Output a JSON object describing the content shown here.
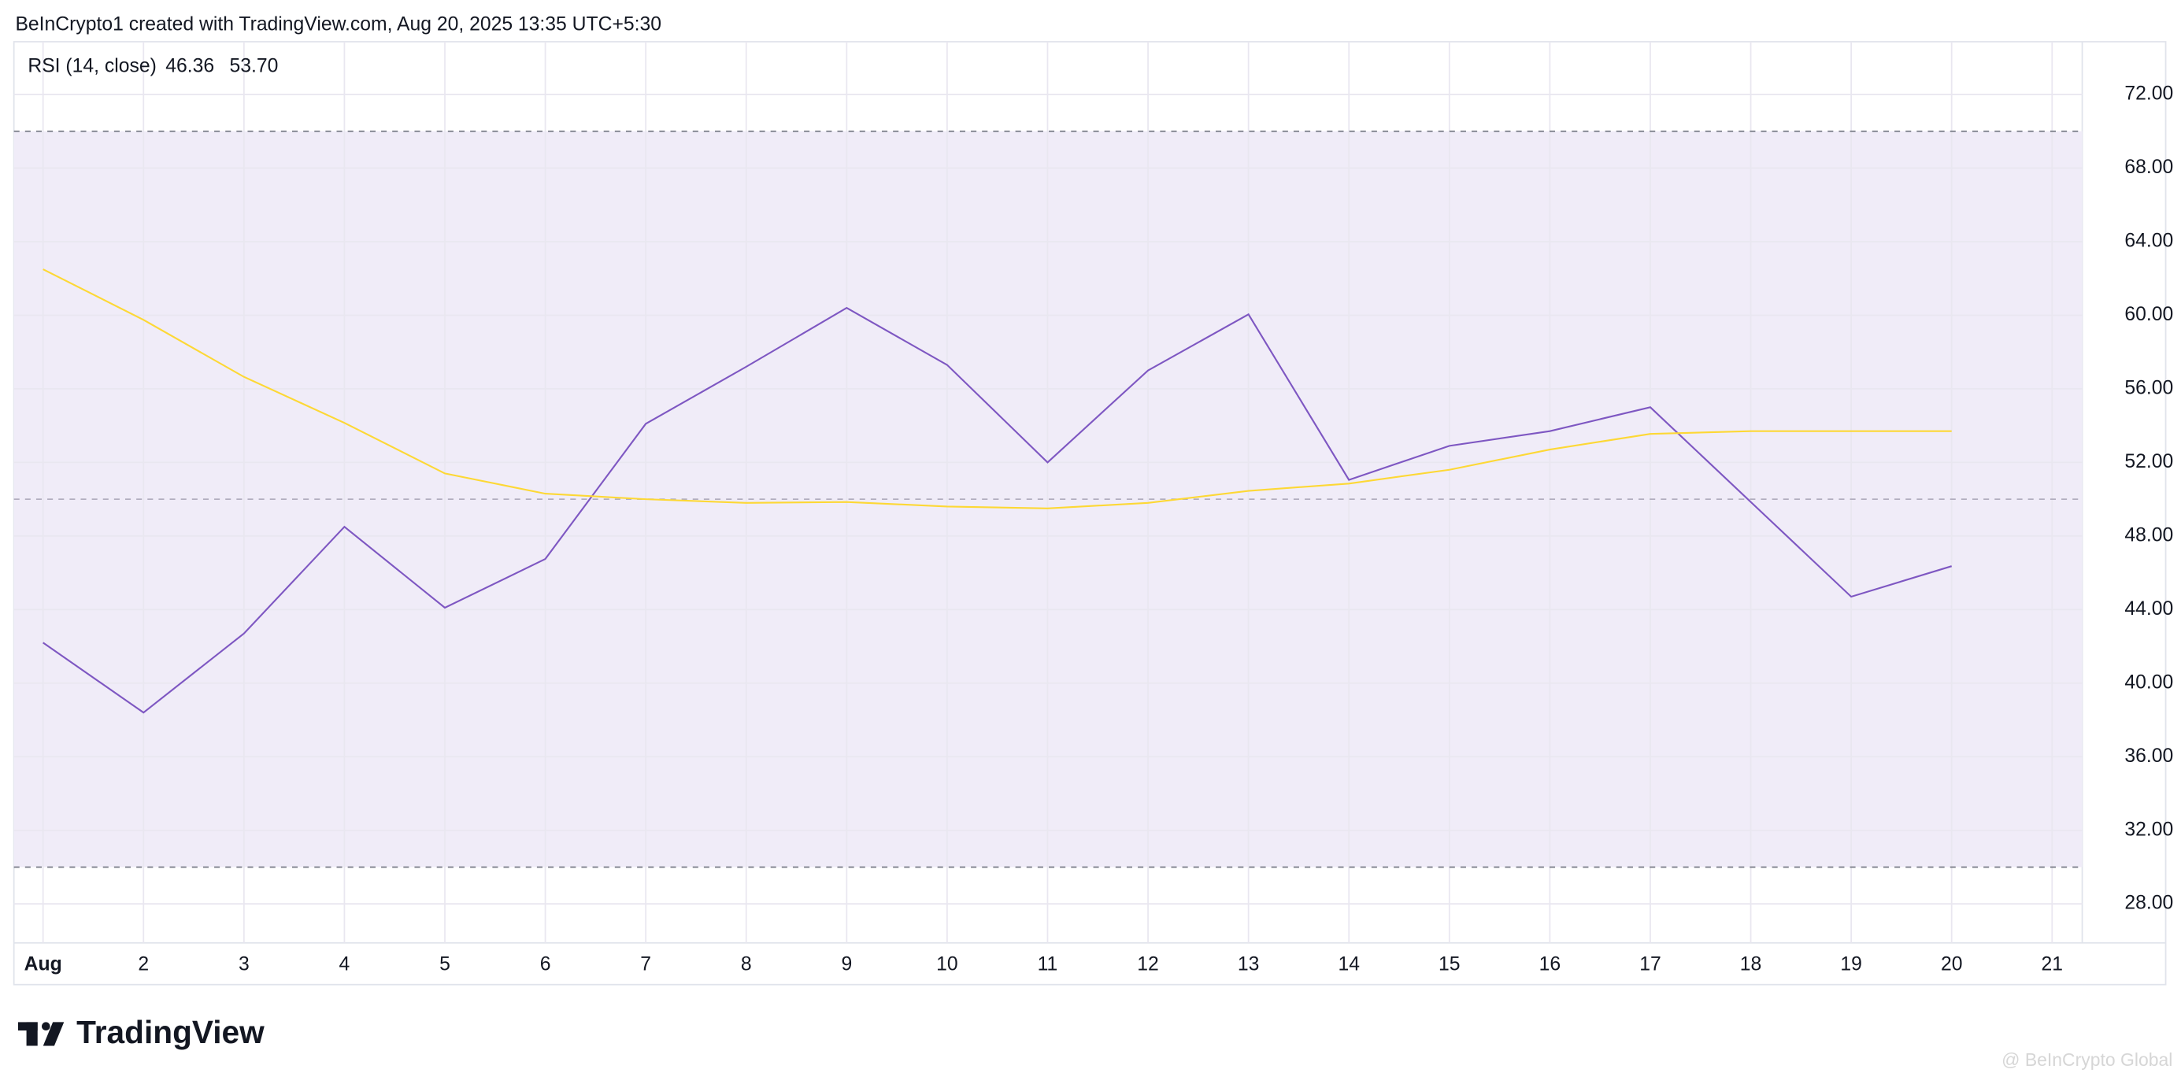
{
  "header": {
    "title": "BeInCrypto1 created with TradingView.com, Aug 20, 2025 13:35 UTC+5:30"
  },
  "chart_data": {
    "type": "line",
    "title": "RSI (14, close)",
    "legend_values": [
      "46.36",
      "53.70"
    ],
    "x": [
      1,
      2,
      3,
      4,
      5,
      6,
      7,
      8,
      9,
      10,
      11,
      12,
      13,
      14,
      15,
      16,
      17,
      18,
      19,
      20
    ],
    "series": [
      {
        "color": "#7e57c2",
        "values": [
          42.2,
          38.4,
          42.7,
          48.5,
          44.1,
          46.75,
          54.1,
          57.2,
          60.4,
          57.3,
          52.0,
          57.0,
          60.05,
          51.05,
          52.9,
          53.7,
          55.0,
          49.85,
          44.7,
          46.36
        ]
      },
      {
        "color": "#fdd835",
        "values": [
          62.5,
          59.75,
          56.65,
          54.15,
          51.4,
          50.3,
          50.0,
          49.8,
          49.85,
          49.6,
          49.5,
          49.8,
          50.45,
          50.85,
          51.6,
          52.7,
          53.55,
          53.7,
          53.7,
          53.7
        ]
      }
    ],
    "xlim": [
      0.71,
      21.3
    ],
    "xticks": [
      {
        "value": 1,
        "label": "Aug"
      },
      2,
      3,
      4,
      5,
      6,
      7,
      8,
      9,
      10,
      11,
      12,
      13,
      14,
      15,
      16,
      17,
      18,
      19,
      20,
      21
    ],
    "ylim": [
      25.88,
      74.87
    ],
    "yticks": [
      {
        "value": 28,
        "label": "28.00"
      },
      {
        "value": 32,
        "label": "32.00"
      },
      {
        "value": 36,
        "label": "36.00"
      },
      {
        "value": 40,
        "label": "40.00"
      },
      {
        "value": 44,
        "label": "44.00"
      },
      {
        "value": 48,
        "label": "48.00"
      },
      {
        "value": 52,
        "label": "52.00"
      },
      {
        "value": 56,
        "label": "56.00"
      },
      {
        "value": 60,
        "label": "60.00"
      },
      {
        "value": 64,
        "label": "64.00"
      },
      {
        "value": 68,
        "label": "68.00"
      },
      {
        "value": 72,
        "label": "72.00"
      }
    ],
    "bands": {
      "upper": 70,
      "middle": 50,
      "lower": 30
    },
    "band_color": "#f0ecf8",
    "grid": true
  },
  "footer": {
    "logo": "TradingView",
    "watermark": "@ BeInCrypto Global"
  }
}
